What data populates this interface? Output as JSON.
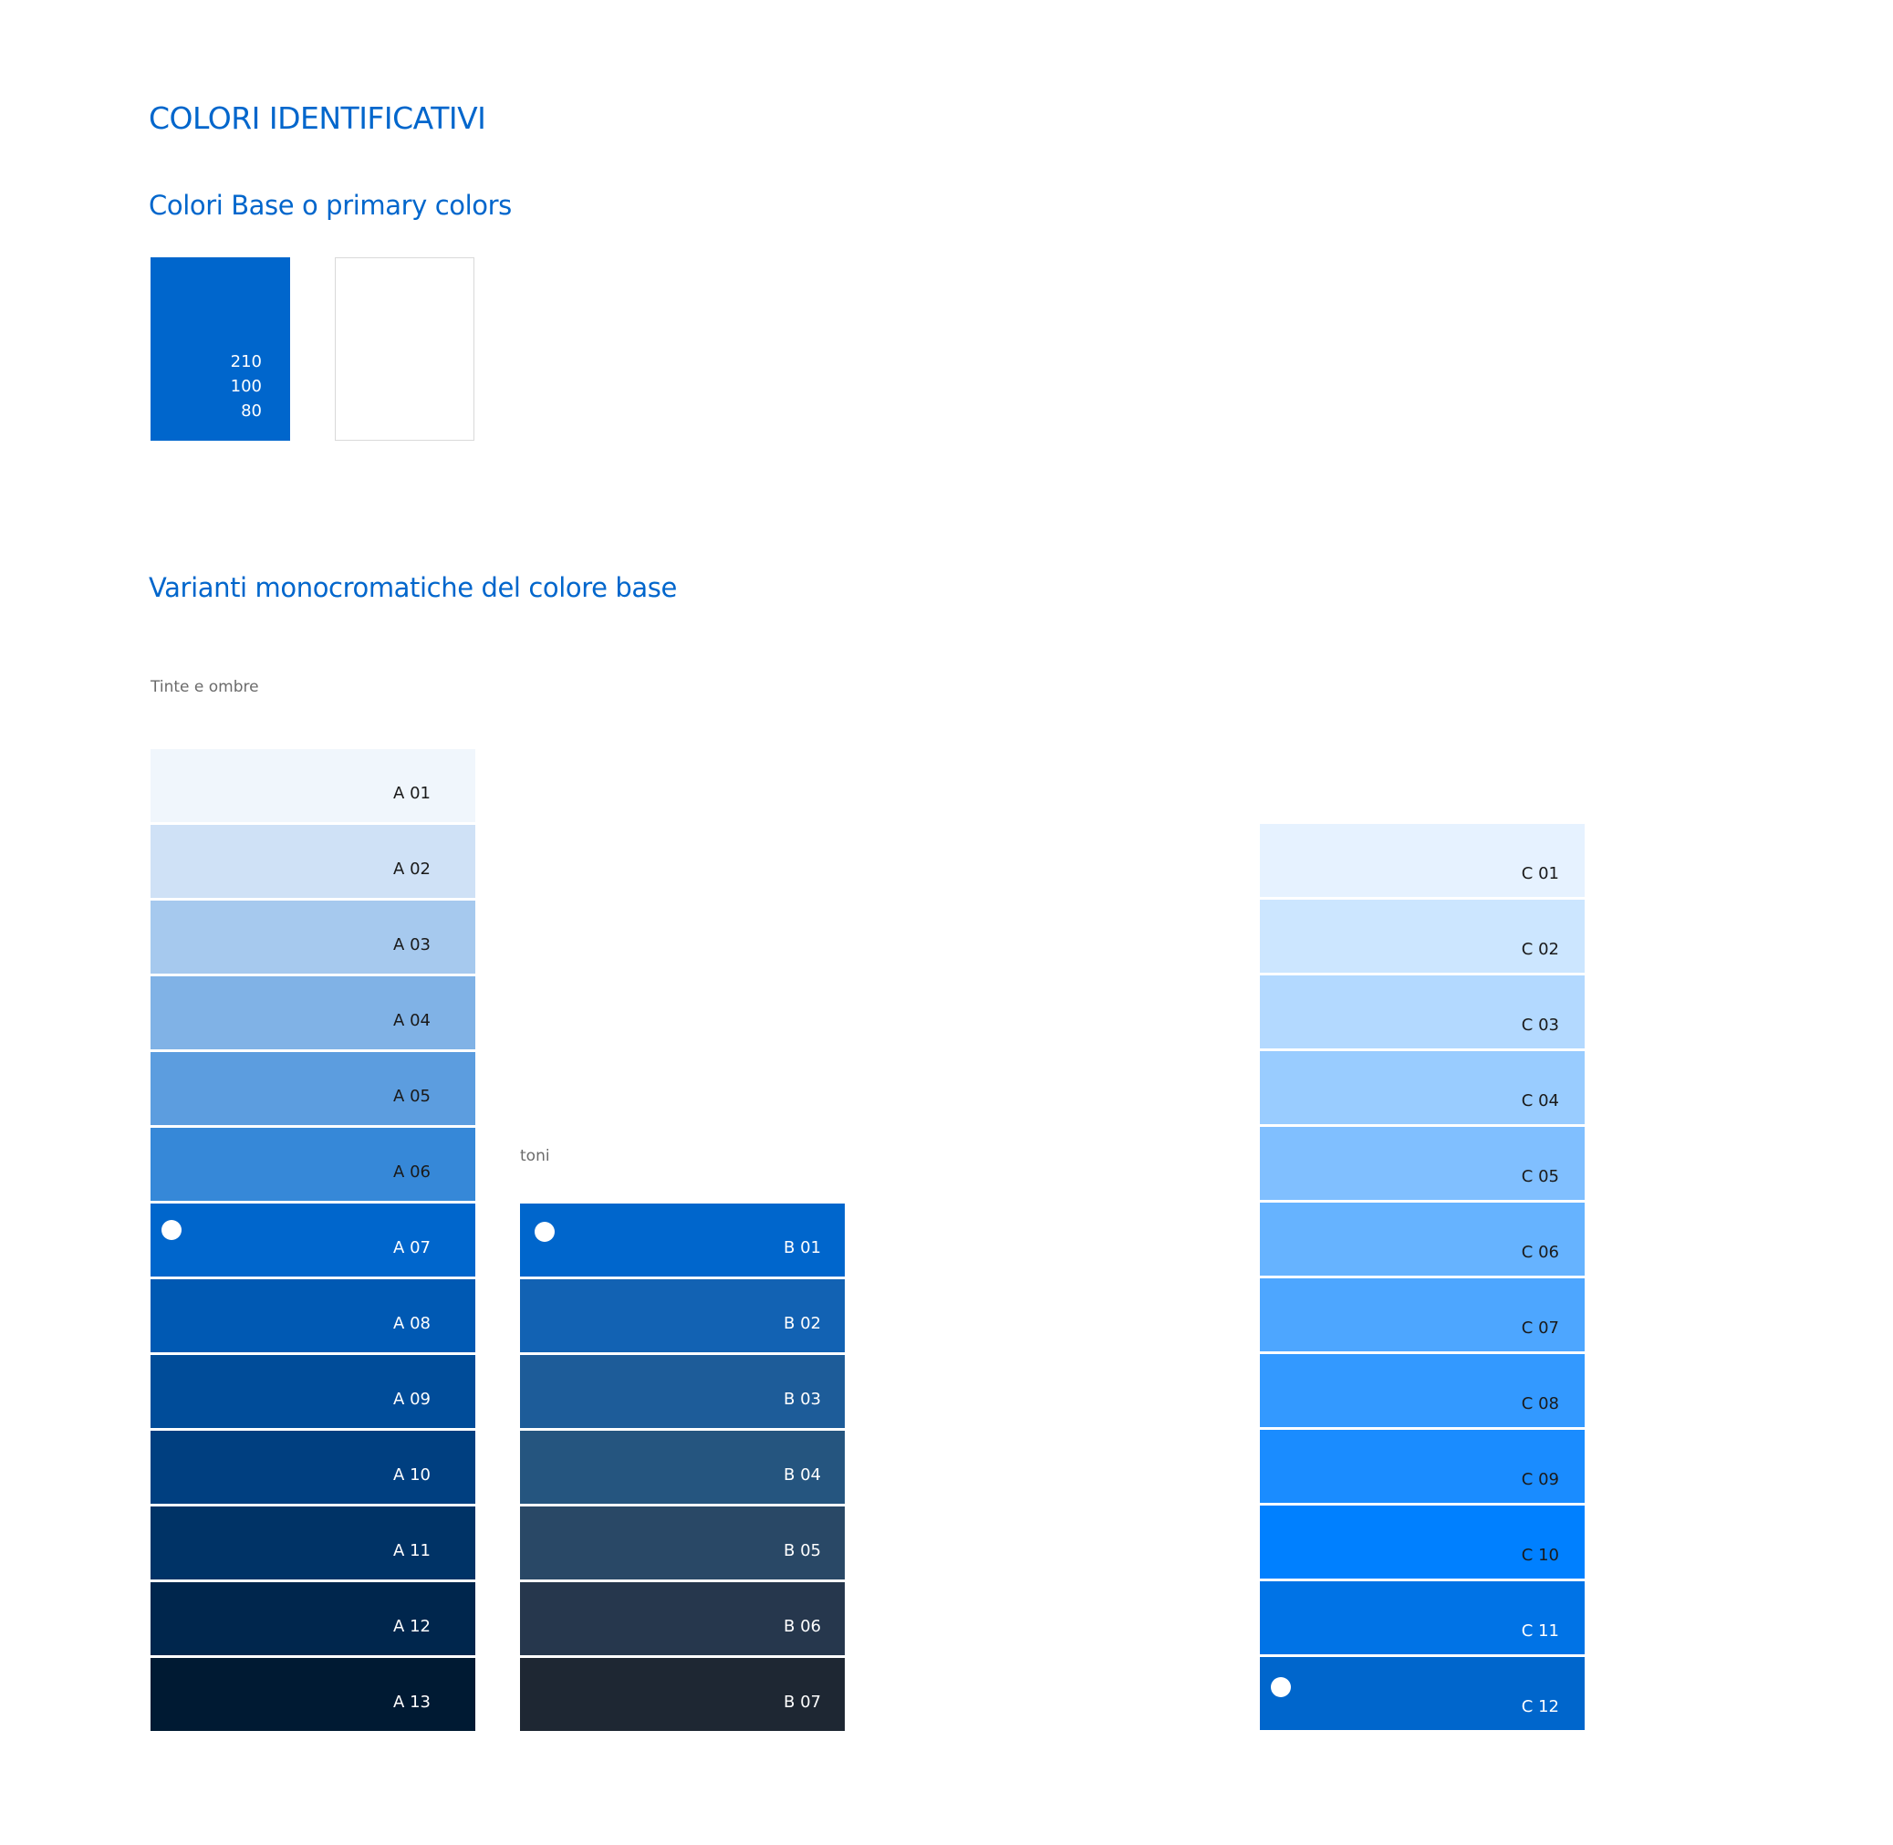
{
  "header": {
    "title": "COLORI IDENTIFICATIVI",
    "primary_subtitle": "Colori Base o primary colors",
    "variants_subtitle": "Varianti monocromatiche del colore base"
  },
  "base_colors": {
    "blue": {
      "color": "#0066cc",
      "h": "210",
      "s": "100",
      "b": "80"
    },
    "white": {
      "color": "#ffffff"
    }
  },
  "captions": {
    "tints": "Tinte e ombre",
    "tones": "toni"
  },
  "palettes": {
    "A": [
      {
        "label": "A 01",
        "color": "#f0f6fc",
        "text": "#1a1a1a"
      },
      {
        "label": "A 02",
        "color": "#cfe1f6",
        "text": "#1a1a1a"
      },
      {
        "label": "A 03",
        "color": "#a6c9ee",
        "text": "#1a1a1a"
      },
      {
        "label": "A 04",
        "color": "#80b2e6",
        "text": "#1a1a1a"
      },
      {
        "label": "A 05",
        "color": "#5c9ddf",
        "text": "#1a1a1a"
      },
      {
        "label": "A 06",
        "color": "#3688d8",
        "text": "#1a1a1a"
      },
      {
        "label": "A 07",
        "color": "#0066cc",
        "text": "#ffffff",
        "marker": true
      },
      {
        "label": "A 08",
        "color": "#0059b3",
        "text": "#ffffff"
      },
      {
        "label": "A 09",
        "color": "#004c99",
        "text": "#ffffff"
      },
      {
        "label": "A 10",
        "color": "#003f80",
        "text": "#ffffff"
      },
      {
        "label": "A 11",
        "color": "#003366",
        "text": "#ffffff"
      },
      {
        "label": "A 12",
        "color": "#00264d",
        "text": "#ffffff"
      },
      {
        "label": "A 13",
        "color": "#001a33",
        "text": "#ffffff"
      }
    ],
    "B": [
      {
        "label": "B 01",
        "color": "#0066cc",
        "text": "#ffffff",
        "marker": true
      },
      {
        "label": "B 02",
        "color": "#1262b3",
        "text": "#ffffff"
      },
      {
        "label": "B 03",
        "color": "#1d5c99",
        "text": "#ffffff"
      },
      {
        "label": "B 04",
        "color": "#25557f",
        "text": "#ffffff"
      },
      {
        "label": "B 05",
        "color": "#294866",
        "text": "#ffffff"
      },
      {
        "label": "B 06",
        "color": "#26374d",
        "text": "#ffffff"
      },
      {
        "label": "B 07",
        "color": "#1e2733",
        "text": "#ffffff"
      }
    ],
    "C": [
      {
        "label": "C 01",
        "color": "#e6f2ff",
        "text": "#1a1a1a"
      },
      {
        "label": "C 02",
        "color": "#cce6ff",
        "text": "#1a1a1a"
      },
      {
        "label": "C 03",
        "color": "#b3d9ff",
        "text": "#1a1a1a"
      },
      {
        "label": "C 04",
        "color": "#99ccff",
        "text": "#1a1a1a"
      },
      {
        "label": "C 05",
        "color": "#80bfff",
        "text": "#1a1a1a"
      },
      {
        "label": "C 06",
        "color": "#66b3ff",
        "text": "#1a1a1a"
      },
      {
        "label": "C 07",
        "color": "#4da6ff",
        "text": "#1a1a1a"
      },
      {
        "label": "C 08",
        "color": "#3399ff",
        "text": "#1a1a1a"
      },
      {
        "label": "C 09",
        "color": "#1a8cff",
        "text": "#1a1a1a"
      },
      {
        "label": "C 10",
        "color": "#0080ff",
        "text": "#1a1a1a"
      },
      {
        "label": "C 11",
        "color": "#0073e6",
        "text": "#ffffff"
      },
      {
        "label": "C 12",
        "color": "#0066cc",
        "text": "#ffffff",
        "marker": true
      }
    ]
  }
}
